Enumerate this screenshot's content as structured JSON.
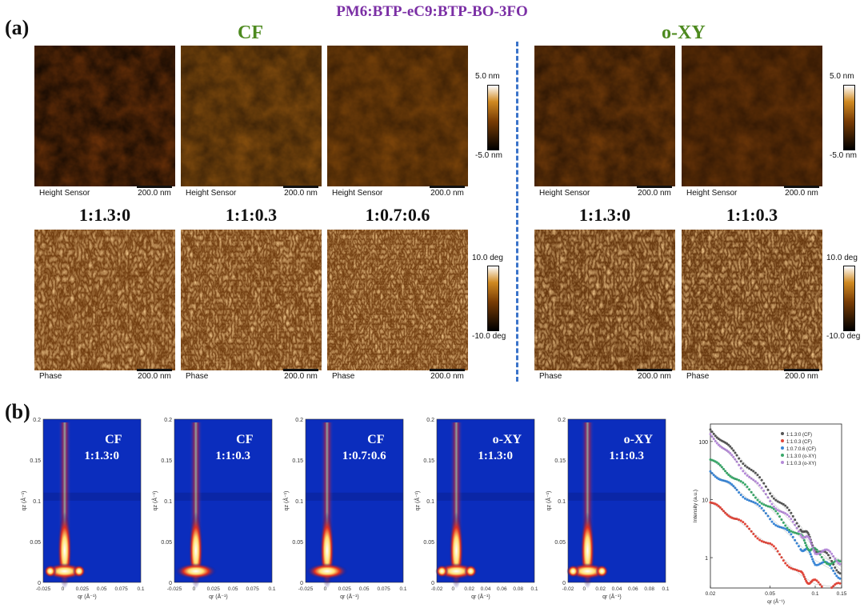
{
  "figure_title": "PM6:BTP-eC9:BTP-BO-3FO",
  "panel_a": {
    "label": "(a)",
    "solvents": [
      "CF",
      "o-XY"
    ],
    "ratios": [
      "1:1.3:0",
      "1:1:0.3",
      "1:0.7:0.6",
      "1:1.3:0",
      "1:1:0.3"
    ],
    "height_caption": "Height Sensor",
    "phase_caption": "Phase",
    "scale_bar": "200.0 nm",
    "height_colorbar": {
      "max": "5.0 nm",
      "min": "-5.0 nm"
    },
    "phase_colorbar": {
      "max": "10.0 deg",
      "min": "-10.0 deg"
    }
  },
  "panel_b": {
    "label": "(b)",
    "maps": [
      {
        "line1": "CF",
        "line2": "1:1.3:0",
        "xticks": [
          "-0.025",
          "0",
          "0.025",
          "0.05",
          "0.075",
          "0.1"
        ]
      },
      {
        "line1": "CF",
        "line2": "1:1:0.3",
        "xticks": [
          "-0.025",
          "0",
          "0.025",
          "0.05",
          "0.075",
          "0.1"
        ]
      },
      {
        "line1": "CF",
        "line2": "1:0.7:0.6",
        "xticks": [
          "-0.025",
          "0",
          "0.025",
          "0.05",
          "0.075",
          "0.1"
        ]
      },
      {
        "line1": "o-XY",
        "line2": "1:1.3:0",
        "xticks": [
          "-0.02",
          "0",
          "0.02",
          "0.04",
          "0.06",
          "0.08",
          "0.1"
        ]
      },
      {
        "line1": "o-XY",
        "line2": "1:1:0.3",
        "xticks": [
          "-0.02",
          "0",
          "0.02",
          "0.04",
          "0.06",
          "0.08",
          "0.1"
        ]
      }
    ],
    "yticks": [
      "0",
      "0.05",
      "0.1",
      "0.15",
      "0.2"
    ],
    "xlabel": "qr (Å⁻¹)",
    "ylabel": "qz (Å⁻¹)"
  },
  "chart_data": {
    "type": "scatter",
    "title": "",
    "xlabel": "qr (Å⁻¹)",
    "ylabel": "Intensity (a.u.)",
    "xscale": "log",
    "yscale": "log",
    "xlim": [
      0.02,
      0.15
    ],
    "ylim": [
      0.3,
      200
    ],
    "xticks": [
      "0.02",
      "0.05",
      "0.1",
      "0.15"
    ],
    "yticks": [
      "1",
      "10",
      "100"
    ],
    "legend_position": "top-right",
    "series": [
      {
        "name": "1:1.3:0 (CF)",
        "color": "#555555",
        "x": [
          0.02,
          0.03,
          0.05,
          0.08,
          0.1,
          0.15
        ],
        "y": [
          160,
          60,
          14,
          3.5,
          1.5,
          0.6
        ]
      },
      {
        "name": "1:1:0.3 (CF)",
        "color": "#e0463a",
        "x": [
          0.02,
          0.03,
          0.05,
          0.08,
          0.1,
          0.15
        ],
        "y": [
          9,
          4.5,
          1.6,
          0.5,
          0.35,
          0.3
        ]
      },
      {
        "name": "1:0.7:0.6 (CF)",
        "color": "#3a86d6",
        "x": [
          0.02,
          0.03,
          0.05,
          0.08,
          0.1,
          0.15
        ],
        "y": [
          30,
          15,
          5,
          1.6,
          0.9,
          0.5
        ]
      },
      {
        "name": "1:1.3:0 (o-XY)",
        "color": "#3aa86a",
        "x": [
          0.02,
          0.03,
          0.05,
          0.08,
          0.1,
          0.15
        ],
        "y": [
          50,
          22,
          7,
          2.2,
          1.2,
          0.7
        ]
      },
      {
        "name": "1:1:0.3 (o-XY)",
        "color": "#b58ad8",
        "x": [
          0.02,
          0.03,
          0.05,
          0.08,
          0.1,
          0.15
        ],
        "y": [
          130,
          45,
          10,
          2.8,
          1.4,
          0.9
        ]
      }
    ]
  }
}
